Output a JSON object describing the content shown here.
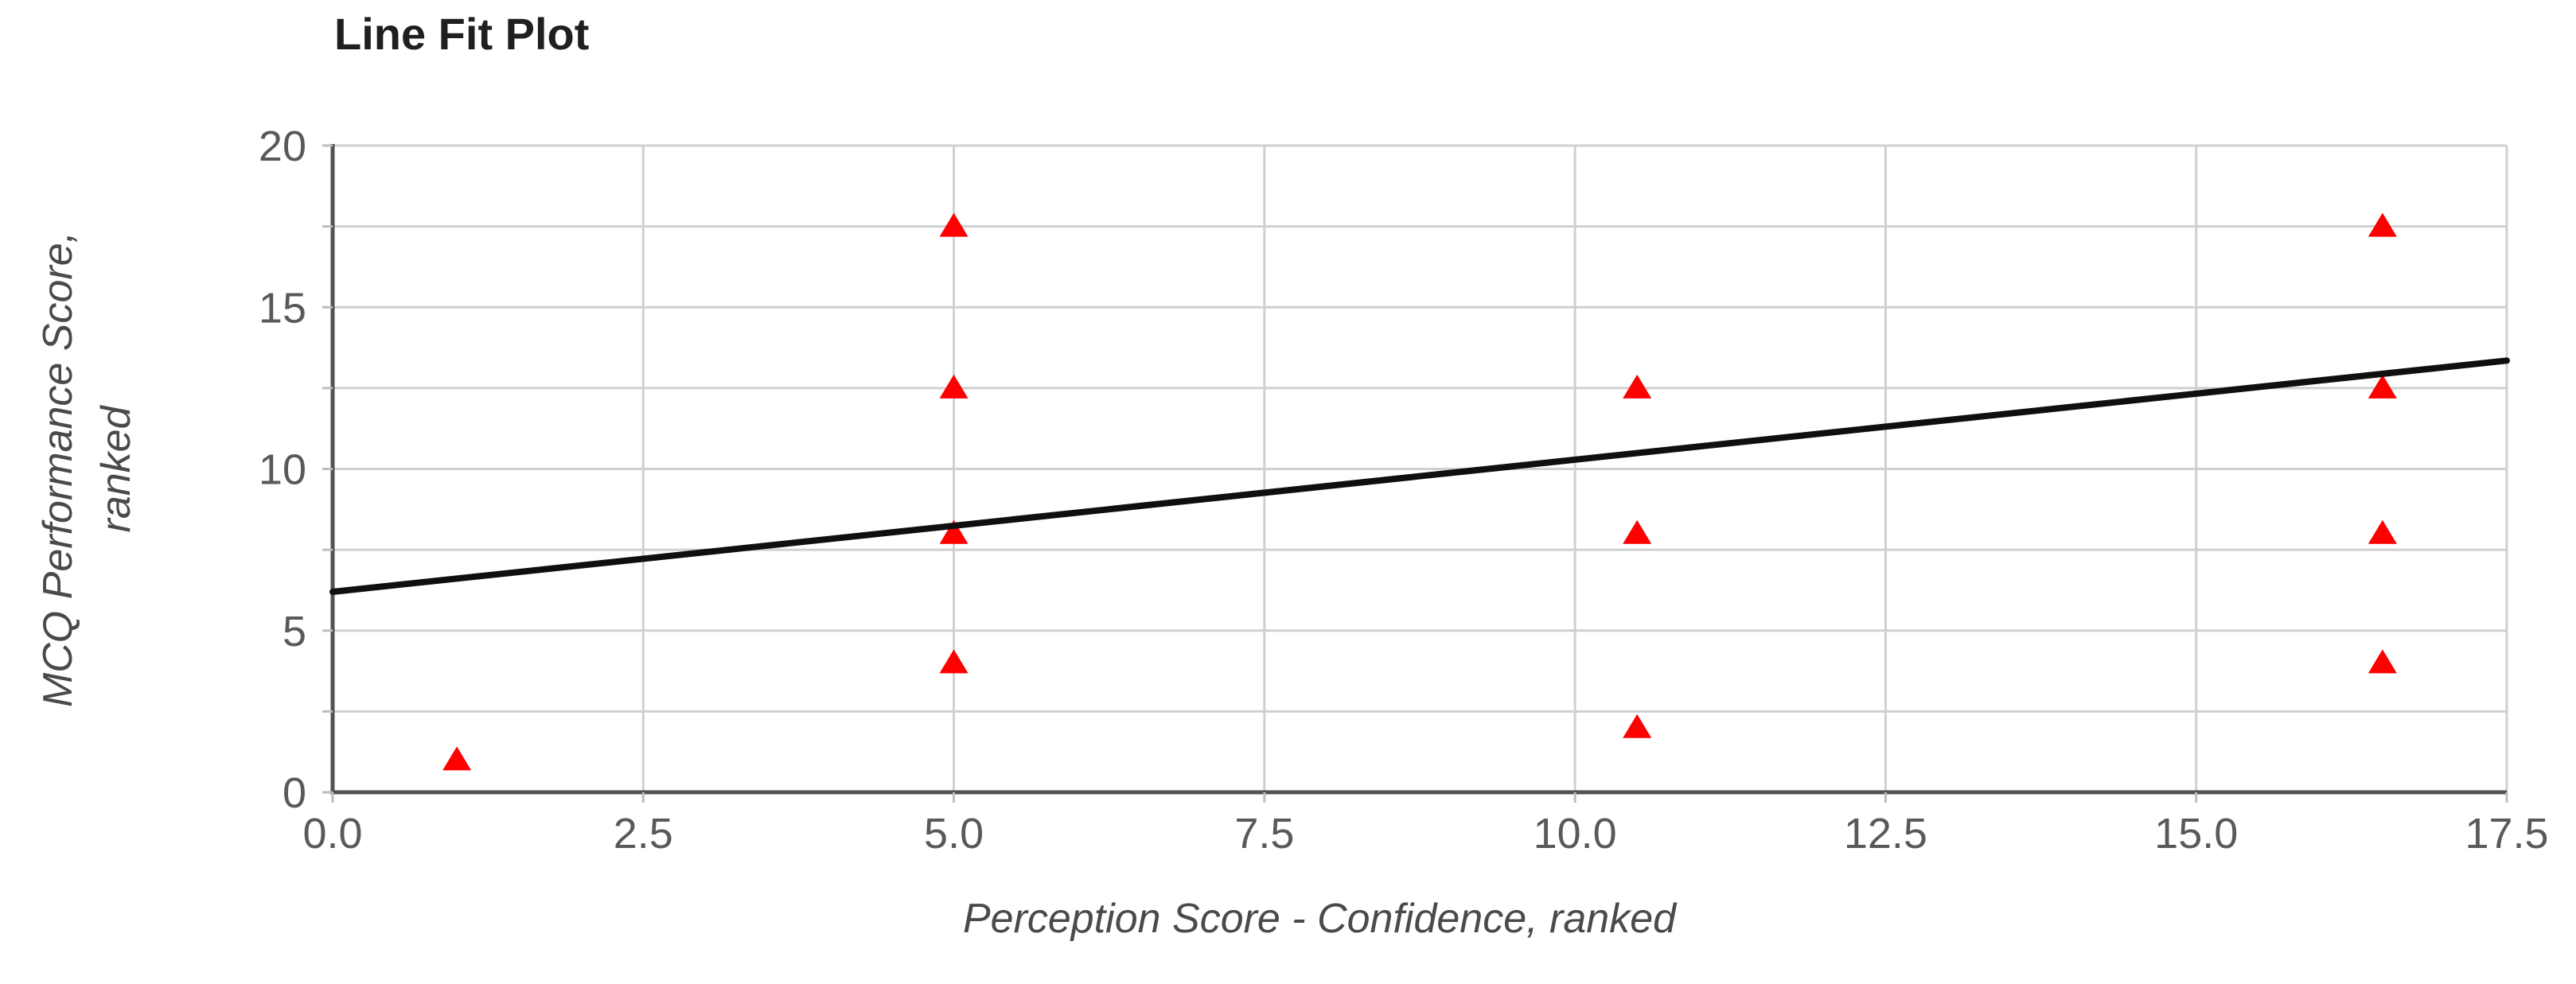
{
  "chart_data": {
    "type": "scatter",
    "title": "Line Fit Plot",
    "xlabel": "Perception Score - Confidence, ranked",
    "ylabel_lines": [
      "MCQ Performance Score,",
      "ranked"
    ],
    "xlim": [
      0,
      17.5
    ],
    "ylim": [
      0,
      20
    ],
    "x_ticks": [
      0,
      2.5,
      5,
      7.5,
      10,
      12.5,
      15,
      17.5
    ],
    "x_tick_labels": [
      "0.0",
      "2.5",
      "5.0",
      "7.5",
      "10.0",
      "12.5",
      "15.0",
      "17.5"
    ],
    "y_major_ticks": [
      0,
      5,
      10,
      15,
      20
    ],
    "y_tick_labels": [
      "0",
      "5",
      "10",
      "15",
      "20"
    ],
    "y_gridlines": [
      0,
      2.5,
      5,
      7.5,
      10,
      12.5,
      15,
      17.5,
      20
    ],
    "grid": true,
    "legend": "none",
    "series": [
      {
        "name": "observed points",
        "type": "scatter",
        "marker": "triangle-up",
        "color": "#fe0000",
        "points": [
          [
            1,
            1
          ],
          [
            5,
            4
          ],
          [
            5,
            8
          ],
          [
            5,
            12.5
          ],
          [
            5,
            17.5
          ],
          [
            10.5,
            2
          ],
          [
            10.5,
            8
          ],
          [
            10.5,
            12.5
          ],
          [
            16.5,
            4
          ],
          [
            16.5,
            8
          ],
          [
            16.5,
            12.5
          ],
          [
            16.5,
            17.5
          ]
        ]
      },
      {
        "name": "fit line",
        "type": "line",
        "color": "#0f0f0f",
        "points": [
          [
            0,
            6.2
          ],
          [
            17.5,
            13.35
          ]
        ]
      }
    ],
    "style_colors": {
      "grid": "#d0d0d0",
      "axis": "#515151",
      "tick_stub": "#bdbdbd"
    }
  }
}
